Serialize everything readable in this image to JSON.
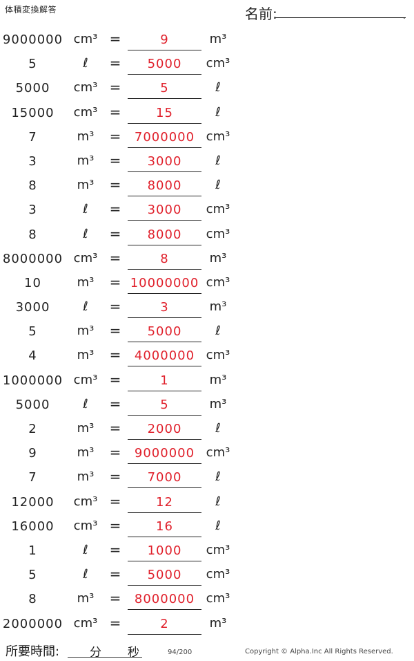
{
  "header": {
    "title": "体積変換解答",
    "name_label": "名前:"
  },
  "rows": [
    {
      "q": "9000000",
      "from": "cm³",
      "ans": "9",
      "to": "m³"
    },
    {
      "q": "5",
      "from": "ℓ",
      "ans": "5000",
      "to": "cm³"
    },
    {
      "q": "5000",
      "from": "cm³",
      "ans": "5",
      "to": "ℓ"
    },
    {
      "q": "15000",
      "from": "cm³",
      "ans": "15",
      "to": "ℓ"
    },
    {
      "q": "7",
      "from": "m³",
      "ans": "7000000",
      "to": "cm³"
    },
    {
      "q": "3",
      "from": "m³",
      "ans": "3000",
      "to": "ℓ"
    },
    {
      "q": "8",
      "from": "m³",
      "ans": "8000",
      "to": "ℓ"
    },
    {
      "q": "3",
      "from": "ℓ",
      "ans": "3000",
      "to": "cm³"
    },
    {
      "q": "8",
      "from": "ℓ",
      "ans": "8000",
      "to": "cm³"
    },
    {
      "q": "8000000",
      "from": "cm³",
      "ans": "8",
      "to": "m³"
    },
    {
      "q": "10",
      "from": "m³",
      "ans": "10000000",
      "to": "cm³"
    },
    {
      "q": "3000",
      "from": "ℓ",
      "ans": "3",
      "to": "m³"
    },
    {
      "q": "5",
      "from": "m³",
      "ans": "5000",
      "to": "ℓ"
    },
    {
      "q": "4",
      "from": "m³",
      "ans": "4000000",
      "to": "cm³"
    },
    {
      "q": "1000000",
      "from": "cm³",
      "ans": "1",
      "to": "m³"
    },
    {
      "q": "5000",
      "from": "ℓ",
      "ans": "5",
      "to": "m³"
    },
    {
      "q": "2",
      "from": "m³",
      "ans": "2000",
      "to": "ℓ"
    },
    {
      "q": "9",
      "from": "m³",
      "ans": "9000000",
      "to": "cm³"
    },
    {
      "q": "7",
      "from": "m³",
      "ans": "7000",
      "to": "ℓ"
    },
    {
      "q": "12000",
      "from": "cm³",
      "ans": "12",
      "to": "ℓ"
    },
    {
      "q": "16000",
      "from": "cm³",
      "ans": "16",
      "to": "ℓ"
    },
    {
      "q": "1",
      "from": "ℓ",
      "ans": "1000",
      "to": "cm³"
    },
    {
      "q": "5",
      "from": "ℓ",
      "ans": "5000",
      "to": "cm³"
    },
    {
      "q": "8",
      "from": "m³",
      "ans": "8000000",
      "to": "cm³"
    },
    {
      "q": "2000000",
      "from": "cm³",
      "ans": "2",
      "to": "m³"
    }
  ],
  "equals": "=",
  "footer": {
    "time_label": "所要時間:",
    "minutes": "分",
    "seconds": "秒",
    "page": "94/200",
    "copyright": "Copyright © Alpha.Inc All Rights Reserved."
  },
  "colors": {
    "answer": "#e0202b"
  }
}
